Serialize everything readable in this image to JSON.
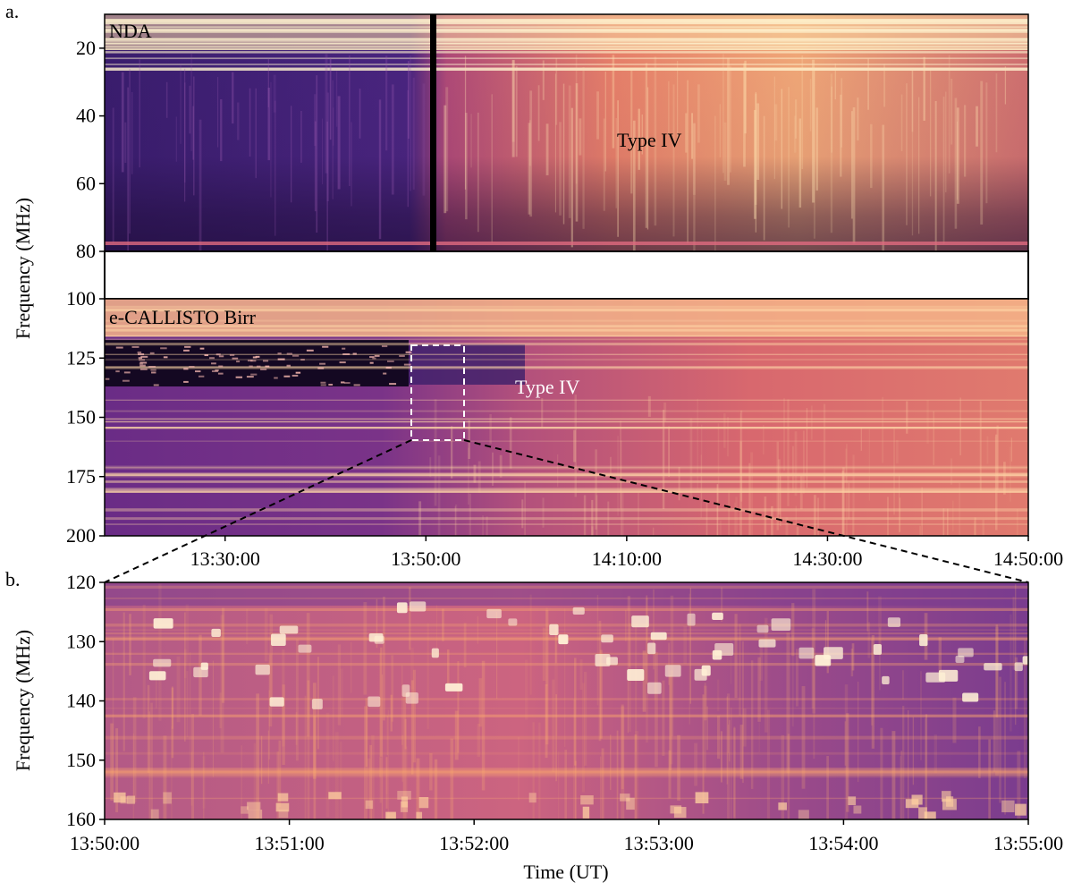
{
  "figure": {
    "panel_a_label": "a.",
    "panel_b_label": "b."
  },
  "chart_data": [
    {
      "type": "heatmap",
      "panel": "a.",
      "subpanels": [
        {
          "instrument": "NDA",
          "frequency_range_mhz": [
            10,
            80
          ],
          "annotation": "Type IV",
          "data_gap_time": "13:53:00"
        },
        {
          "instrument": "e-CALLISTO Birr",
          "frequency_range_mhz": [
            100,
            200
          ],
          "annotation": "Type IV",
          "zoom_box": {
            "time": [
              "13:50:00",
              "13:55:00"
            ],
            "frequency_mhz": [
              120,
              160
            ]
          }
        }
      ],
      "xlabel": "",
      "ylabel": "Frequency  (MHz)",
      "xlim": [
        "13:18:00",
        "14:50:00"
      ],
      "ylim": [
        200,
        10
      ],
      "blank_band_mhz": [
        80,
        100
      ],
      "x_ticks": [
        "13:30:00",
        "13:50:00",
        "14:10:00",
        "14:30:00",
        "14:50:00"
      ],
      "y_ticks": [
        20,
        40,
        60,
        80,
        100,
        125,
        150,
        175,
        200
      ],
      "colormap": "magma"
    },
    {
      "type": "heatmap",
      "panel": "b.",
      "instrument": "e-CALLISTO Birr",
      "xlabel": "Time (UT)",
      "ylabel": "Frequency (MHz)",
      "xlim": [
        "13:50:00",
        "13:55:00"
      ],
      "ylim": [
        160,
        120
      ],
      "x_ticks": [
        "13:50:00",
        "13:51:00",
        "13:52:00",
        "13:53:00",
        "13:54:00",
        "13:55:00"
      ],
      "y_ticks": [
        120,
        130,
        140,
        150,
        160
      ],
      "colormap": "magma"
    }
  ]
}
